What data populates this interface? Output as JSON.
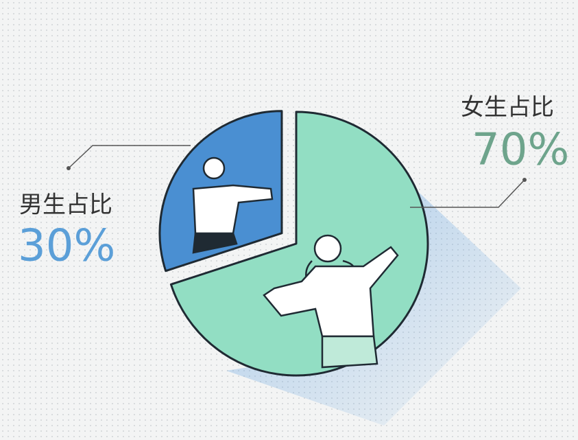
{
  "chart_data": {
    "type": "pie",
    "categories": [
      "男生占比",
      "女生占比"
    ],
    "values": [
      30,
      70
    ],
    "value_labels": [
      "30%",
      "70%"
    ],
    "colors": [
      "#4a8fd2",
      "#92dec3"
    ],
    "label_colors": [
      "#5b9fd8",
      "#6ea48c"
    ]
  }
}
